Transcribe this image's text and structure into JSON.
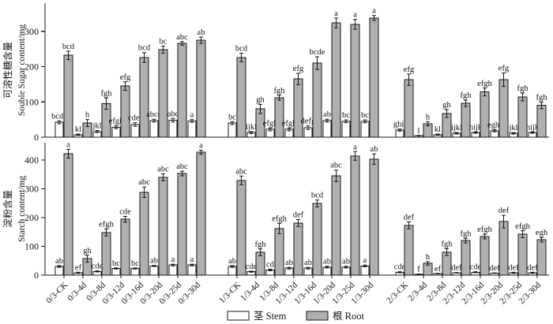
{
  "colors": {
    "stem_fill": "#ffffff",
    "root_fill": "#b0b0b0",
    "bar_border": "#1a1a1a",
    "axis": "#1a1a1a",
    "text": "#111111",
    "background": "#ffffff"
  },
  "legend": {
    "items": [
      {
        "label": "茎 Stem",
        "fill": "#ffffff"
      },
      {
        "label": "根 Root",
        "fill": "#b0b0b0"
      }
    ],
    "position": "bottom-center"
  },
  "chart_data": [
    {
      "type": "bar",
      "panel": "top",
      "title": "",
      "ylabel_cn": "可溶性糖含量",
      "ylabel_en": "Souble Sugar content/mg",
      "ylim": [
        0,
        380
      ],
      "yticks": [
        0,
        100,
        200,
        300
      ],
      "grid": false,
      "legend_position": "bottom",
      "categories": [
        "0/3-CK",
        "0/3-4d",
        "0/3-8d",
        "0/3-12d",
        "0/3-16d",
        "0/3-20d",
        "0/3-25d",
        "0/3-30d",
        "1/3-CK",
        "1/3-4d",
        "1/3-8d",
        "1/3-12d",
        "1/3-16d",
        "1/3-20d",
        "1/3-25d",
        "1/3-30d",
        "2/3-CK",
        "2/3-4d",
        "2/3-8d",
        "2/3-12d",
        "2/3-16d",
        "2/3-20d",
        "2/3-25d",
        "2/3-30d"
      ],
      "series": [
        {
          "name": "茎 Stem",
          "values": [
            42,
            7,
            16,
            28,
            36,
            47,
            48,
            46,
            40,
            13,
            22,
            22,
            27,
            47,
            45,
            45,
            20,
            4,
            7,
            11,
            13,
            18,
            11,
            13
          ],
          "errors": [
            4,
            2,
            3,
            4,
            5,
            4,
            5,
            4,
            4,
            3,
            4,
            4,
            5,
            4,
            4,
            4,
            3,
            1,
            2,
            2,
            2,
            3,
            2,
            2
          ],
          "letters": [
            "bcde",
            "kl",
            "jkl",
            "efgh",
            "cdef",
            "abcd",
            "abc",
            "a",
            "bc",
            "ijkl",
            "efgh",
            "efgh",
            "defg",
            "ab",
            "bc",
            "bc",
            "ghij",
            "l",
            "kl",
            "ijkl",
            "hijk",
            "eghi",
            "jkl",
            "hijk"
          ]
        },
        {
          "name": "根 Root",
          "values": [
            232,
            40,
            95,
            145,
            226,
            248,
            266,
            275,
            226,
            80,
            112,
            165,
            210,
            324,
            320,
            338,
            163,
            38,
            67,
            96,
            128,
            163,
            114,
            90
          ],
          "errors": [
            12,
            10,
            16,
            12,
            14,
            10,
            5,
            9,
            12,
            13,
            7,
            16,
            18,
            14,
            14,
            7,
            16,
            6,
            11,
            9,
            11,
            19,
            11,
            9
          ],
          "letters": [
            "bcd",
            "h",
            "fgh",
            "efg",
            "bcd",
            "bc",
            "abc",
            "ab",
            "bcd",
            "gh",
            "fgh",
            "efg",
            "bcde",
            "a",
            "a",
            "a",
            "efg",
            "h",
            "gh",
            "fgh",
            "efgh",
            "efg",
            "fgh",
            "fgh"
          ]
        }
      ]
    },
    {
      "type": "bar",
      "panel": "bottom",
      "title": "",
      "ylabel_cn": "淀粉含量",
      "ylabel_en": "Starch content/mg",
      "ylim": [
        0,
        460
      ],
      "yticks": [
        0,
        100,
        200,
        300,
        400
      ],
      "grid": false,
      "legend_position": "bottom",
      "categories": [
        "0/3-CK",
        "0/3-4d",
        "0/3-8d",
        "0/3-12d",
        "0/3-16d",
        "0/3-20d",
        "0/3-25d",
        "0/3-30d",
        "1/3-CK",
        "1/3-4d",
        "1/3-8d",
        "1/3-12d",
        "1/3-16d",
        "1/3-20d",
        "1/3-25d",
        "1/3-30d",
        "2/3-CK",
        "2/3-4d",
        "2/3-8d",
        "2/3-12d",
        "2/3-16d",
        "2/3-20d",
        "2/3-25d",
        "2/3-30d"
      ],
      "series": [
        {
          "name": "茎 Stem",
          "values": [
            30,
            8,
            13,
            23,
            23,
            32,
            35,
            35,
            30,
            12,
            18,
            24,
            24,
            28,
            28,
            32,
            10,
            3,
            5,
            8,
            10,
            7,
            8,
            8
          ],
          "errors": [
            3,
            2,
            2,
            2,
            2,
            2,
            3,
            3,
            3,
            2,
            3,
            3,
            3,
            3,
            3,
            3,
            2,
            1,
            1,
            1,
            2,
            1,
            2,
            2
          ],
          "letters": [
            "ab",
            "ef",
            "cde",
            "bc",
            "bc",
            "ab",
            "a",
            "a",
            "ab",
            "cde",
            "cd",
            "ab",
            "ab",
            "ab",
            "ab",
            "a",
            "cde",
            "f",
            "ef",
            "def",
            "cde",
            "def",
            "def",
            "def"
          ]
        },
        {
          "name": "根 Root",
          "values": [
            422,
            57,
            148,
            194,
            288,
            340,
            353,
            427,
            329,
            79,
            162,
            181,
            249,
            345,
            414,
            403,
            173,
            41,
            80,
            120,
            134,
            186,
            142,
            123
          ],
          "errors": [
            15,
            12,
            12,
            10,
            18,
            12,
            8,
            7,
            15,
            12,
            18,
            12,
            12,
            20,
            15,
            18,
            12,
            6,
            12,
            8,
            8,
            22,
            12,
            8
          ],
          "letters": [
            "a",
            "gh",
            "efgh",
            "cde",
            "abc",
            "abc",
            "abc",
            "a",
            "abc",
            "fgh",
            "efgh",
            "def",
            "bcd",
            "abc",
            "a",
            "ab",
            "def",
            "h",
            "fgh",
            "fgh",
            "efgh",
            "def",
            "efgh",
            "egh"
          ]
        }
      ]
    }
  ]
}
